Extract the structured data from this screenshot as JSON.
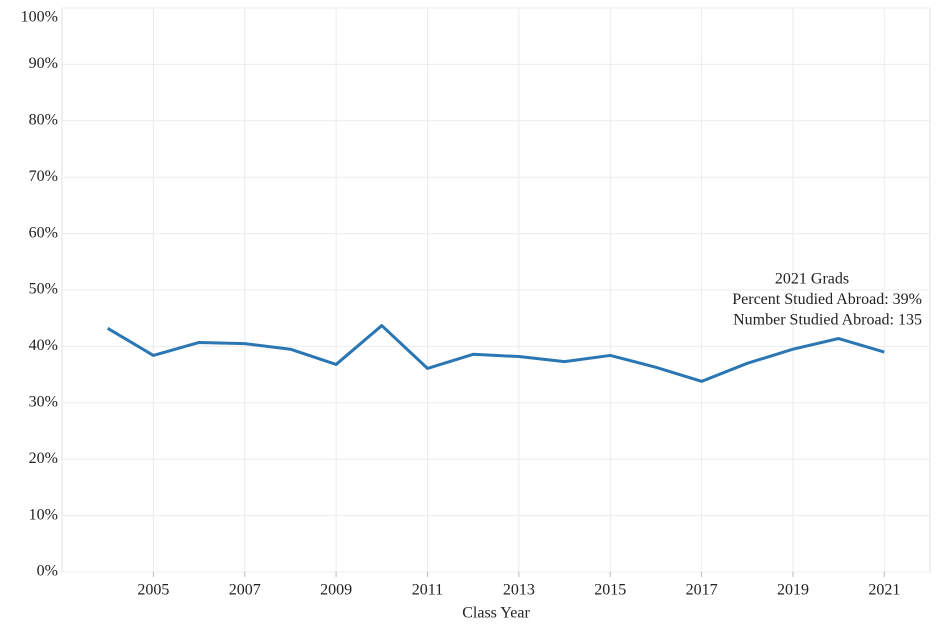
{
  "chart_data": {
    "type": "line",
    "x_label": "Class Year",
    "x": [
      2004,
      2005,
      2006,
      2007,
      2008,
      2009,
      2010,
      2011,
      2012,
      2013,
      2014,
      2015,
      2016,
      2017,
      2018,
      2019,
      2020,
      2021
    ],
    "series": [
      {
        "name": "Percent Studied Abroad",
        "color": "#2a77b4",
        "values": [
          43.2,
          38.4,
          40.7,
          40.5,
          39.5,
          36.8,
          43.7,
          36.1,
          38.6,
          38.2,
          37.3,
          38.4,
          36.3,
          33.8,
          37.0,
          39.5,
          41.4,
          39.0
        ]
      }
    ],
    "xlim": [
      2003,
      2022
    ],
    "xticks": [
      2005,
      2007,
      2009,
      2011,
      2013,
      2015,
      2017,
      2019,
      2021
    ],
    "ylim": [
      0,
      100
    ],
    "yticks": [
      {
        "value": 0,
        "label": "0%"
      },
      {
        "value": 10,
        "label": "10%"
      },
      {
        "value": 20,
        "label": "20%"
      },
      {
        "value": 30,
        "label": "30%"
      },
      {
        "value": 40,
        "label": "40%"
      },
      {
        "value": 50,
        "label": "50%"
      },
      {
        "value": 60,
        "label": "60%"
      },
      {
        "value": 70,
        "label": "70%"
      },
      {
        "value": 80,
        "label": "80%"
      },
      {
        "value": 90,
        "label": "90%"
      },
      {
        "value": 100,
        "label": "100%"
      }
    ],
    "grid": true,
    "annotation": [
      "2021 Grads",
      "Percent Studied Abroad: 39%",
      "Number Studied Abroad: 135"
    ]
  }
}
